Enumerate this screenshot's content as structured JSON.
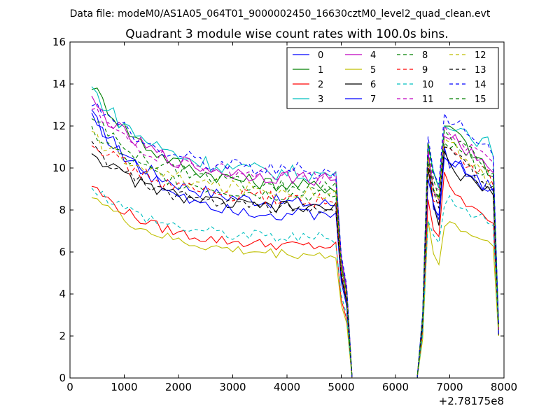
{
  "suptitle": "Data file: modeM0/AS1A05_064T01_9000002450_16630cztM0_level2_quad_clean.evt",
  "chart_data": {
    "type": "line",
    "title": "Quadrant 3 module wise count rates with 100.0s bins.",
    "xlabel": "",
    "ylabel": "",
    "x_offset_label": "+2.78175e8",
    "xlim": [
      0,
      8000
    ],
    "ylim": [
      0,
      16
    ],
    "x_ticks": [
      "0",
      "1000",
      "2000",
      "3000",
      "4000",
      "5000",
      "6000",
      "7000",
      "8000"
    ],
    "y_ticks": [
      "0",
      "2",
      "4",
      "6",
      "8",
      "10",
      "12",
      "14",
      "16"
    ],
    "legend_position": "top-right",
    "x": [
      400,
      500,
      600,
      700,
      800,
      900,
      1000,
      1100,
      1200,
      1300,
      1400,
      1500,
      1600,
      1700,
      1800,
      1900,
      2000,
      2100,
      2200,
      2300,
      2400,
      2500,
      2600,
      2700,
      2800,
      2900,
      3000,
      3100,
      3200,
      3300,
      3400,
      3500,
      3600,
      3700,
      3800,
      3900,
      4000,
      4100,
      4200,
      4300,
      4400,
      4500,
      4600,
      4700,
      4800,
      4900,
      5000,
      5100,
      5200,
      5300,
      5400,
      5500,
      5600,
      5700,
      5800,
      5900,
      6000,
      6100,
      6200,
      6300,
      6400,
      6500,
      6600,
      6700,
      6800,
      6900,
      7000,
      7100,
      7200,
      7300,
      7400,
      7500,
      7600,
      7700,
      7800,
      7900
    ],
    "series": [
      {
        "name": "0",
        "color": "#0000ff",
        "dash": "solid",
        "pre_start": 12.5,
        "pre_end": 8.2,
        "post_start": 10.2,
        "post_end": 8.8,
        "noise": 0.35,
        "spike1": 10.8,
        "spike2": 11.0
      },
      {
        "name": "1",
        "color": "#008000",
        "dash": "solid",
        "pre_start": 14.0,
        "pre_end": 9.0,
        "post_start": 12.0,
        "post_end": 9.2,
        "noise": 0.35,
        "spike1": 11.2,
        "spike2": 12.0
      },
      {
        "name": "2",
        "color": "#ff0000",
        "dash": "solid",
        "pre_start": 9.2,
        "pre_end": 6.2,
        "post_start": 9.0,
        "post_end": 7.0,
        "noise": 0.25,
        "spike1": 8.5,
        "spike2": 9.8
      },
      {
        "name": "3",
        "color": "#00bfbf",
        "dash": "solid",
        "pre_start": 13.8,
        "pre_end": 9.6,
        "post_start": 12.2,
        "post_end": 10.8,
        "noise": 0.4,
        "spike1": 11.0,
        "spike2": 12.0
      },
      {
        "name": "4",
        "color": "#bf00bf",
        "dash": "solid",
        "pre_start": 13.2,
        "pre_end": 9.4,
        "post_start": 11.5,
        "post_end": 9.8,
        "noise": 0.35,
        "spike1": 10.8,
        "spike2": 11.5
      },
      {
        "name": "5",
        "color": "#bfbf00",
        "dash": "solid",
        "pre_start": 8.8,
        "pre_end": 5.8,
        "post_start": 7.4,
        "post_end": 6.2,
        "noise": 0.25,
        "spike1": 7.5,
        "spike2": 7.2
      },
      {
        "name": "6",
        "color": "#000000",
        "dash": "solid",
        "pre_start": 10.8,
        "pre_end": 8.0,
        "post_start": 10.0,
        "post_end": 8.5,
        "noise": 0.3,
        "spike1": 10.0,
        "spike2": 10.8
      },
      {
        "name": "7",
        "color": "#0000ff",
        "dash": "solid",
        "pre_start": 12.6,
        "pre_end": 7.6,
        "post_start": 10.5,
        "post_end": 8.6,
        "noise": 0.35,
        "spike1": 9.5,
        "spike2": 10.5
      },
      {
        "name": "8",
        "color": "#008000",
        "dash": "dashed",
        "pre_start": 11.8,
        "pre_end": 8.6,
        "post_start": 11.0,
        "post_end": 9.4,
        "noise": 0.35,
        "spike1": 10.5,
        "spike2": 11.2
      },
      {
        "name": "9",
        "color": "#ff0000",
        "dash": "dashed",
        "pre_start": 11.4,
        "pre_end": 8.4,
        "post_start": 10.8,
        "post_end": 9.2,
        "noise": 0.35,
        "spike1": 10.2,
        "spike2": 11.0
      },
      {
        "name": "10",
        "color": "#00bfbf",
        "dash": "dashed",
        "pre_start": 9.2,
        "pre_end": 6.6,
        "post_start": 8.4,
        "post_end": 7.2,
        "noise": 0.3,
        "spike1": 7.5,
        "spike2": 8.2
      },
      {
        "name": "11",
        "color": "#bf00bf",
        "dash": "dashed",
        "pre_start": 12.8,
        "pre_end": 9.5,
        "post_start": 11.8,
        "post_end": 10.0,
        "noise": 0.35,
        "spike1": 11.0,
        "spike2": 12.0
      },
      {
        "name": "12",
        "color": "#bfbf00",
        "dash": "dashed",
        "pre_start": 11.6,
        "pre_end": 8.8,
        "post_start": 11.2,
        "post_end": 9.0,
        "noise": 0.35,
        "spike1": 10.5,
        "spike2": 11.4
      },
      {
        "name": "13",
        "color": "#000000",
        "dash": "dashed",
        "pre_start": 11.0,
        "pre_end": 8.0,
        "post_start": 10.8,
        "post_end": 8.6,
        "noise": 0.3,
        "spike1": 10.2,
        "spike2": 11.0
      },
      {
        "name": "14",
        "color": "#0000ff",
        "dash": "dashed",
        "pre_start": 13.2,
        "pre_end": 9.8,
        "post_start": 12.4,
        "post_end": 10.6,
        "noise": 0.4,
        "spike1": 11.5,
        "spike2": 12.6
      },
      {
        "name": "15",
        "color": "#008000",
        "dash": "dashed",
        "pre_start": 12.4,
        "pre_end": 9.0,
        "post_start": 11.6,
        "post_end": 9.6,
        "noise": 0.35,
        "spike1": 11.2,
        "spike2": 11.8
      }
    ]
  }
}
